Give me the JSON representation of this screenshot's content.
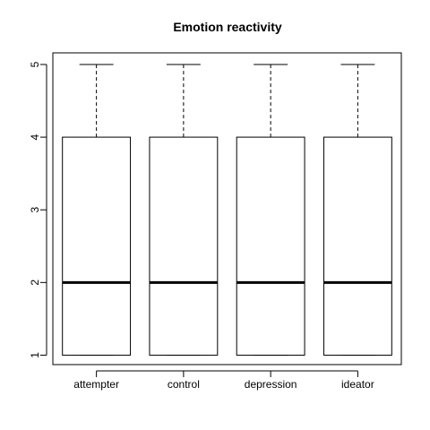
{
  "chart_data": {
    "type": "box",
    "title": "Emotion reactivity",
    "xlabel": "",
    "ylabel": "",
    "categories": [
      "attempter",
      "control",
      "depression",
      "ideator"
    ],
    "boxes": [
      {
        "category": "attempter",
        "min": 1,
        "q1": 1,
        "median": 2,
        "q3": 4,
        "max": 5
      },
      {
        "category": "control",
        "min": 1,
        "q1": 1,
        "median": 2,
        "q3": 4,
        "max": 5
      },
      {
        "category": "depression",
        "min": 1,
        "q1": 1,
        "median": 2,
        "q3": 4,
        "max": 5
      },
      {
        "category": "ideator",
        "min": 1,
        "q1": 1,
        "median": 2,
        "q3": 4,
        "max": 5
      }
    ],
    "yticks": [
      1,
      2,
      3,
      4,
      5
    ],
    "ylim": [
      0.87,
      5.16
    ],
    "grid": false,
    "legend": "none"
  }
}
